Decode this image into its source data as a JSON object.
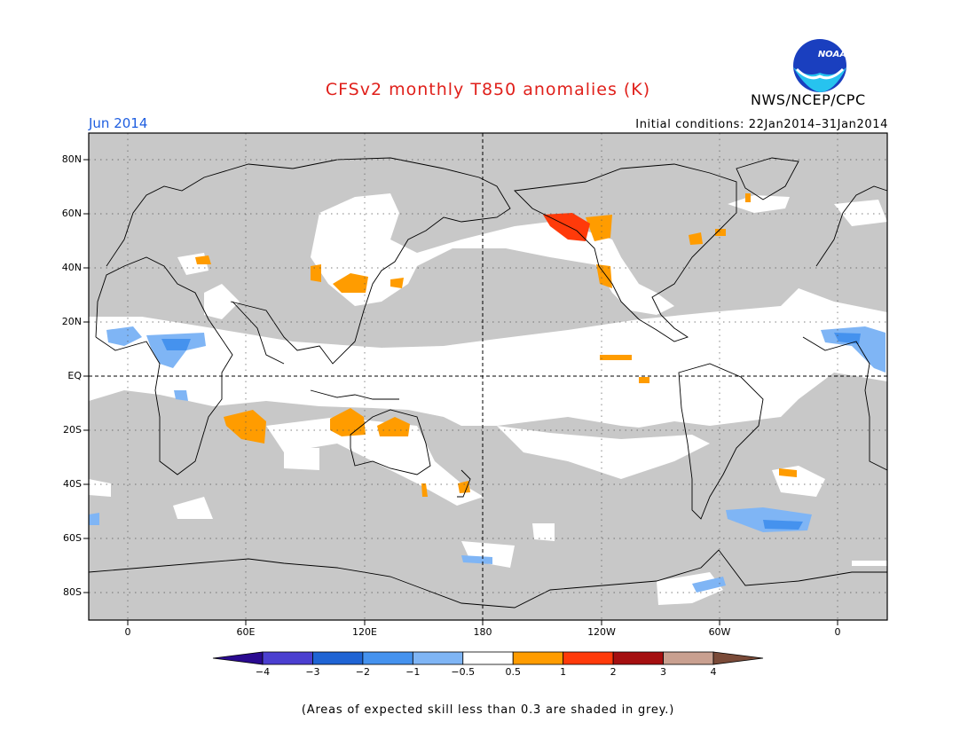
{
  "header": {
    "title": "CFSv2 monthly T850 anomalies (K)",
    "agency": "NWS/NCEP/CPC",
    "month": "Jun 2014",
    "initial_conditions": "Initial conditions: 22Jan2014–31Jan2014",
    "logo_text": "NOAA"
  },
  "map": {
    "lat_labels": [
      "80N",
      "60N",
      "40N",
      "20N",
      "EQ",
      "20S",
      "40S",
      "60S",
      "80S"
    ],
    "lon_labels": [
      "0",
      "60E",
      "120E",
      "180",
      "120W",
      "60W",
      "0"
    ]
  },
  "legend": {
    "labels": [
      "−4",
      "−3",
      "−2",
      "−1",
      "−0.5",
      "0.5",
      "1",
      "2",
      "3",
      "4"
    ],
    "colors": [
      "#2a0a90",
      "#4b3fd0",
      "#1f64d4",
      "#4592ee",
      "#7fb5f5",
      "#ffffff",
      "#ff9c00",
      "#ff3a0a",
      "#a50f10",
      "#c9a090",
      "#7a4a38"
    ],
    "note": "(Areas of expected skill less than 0.3 are shaded in grey.)"
  },
  "colors": {
    "grey_shading": "#c8c8c8",
    "title_red": "#e0201b",
    "month_blue": "#1e5ee0"
  }
}
